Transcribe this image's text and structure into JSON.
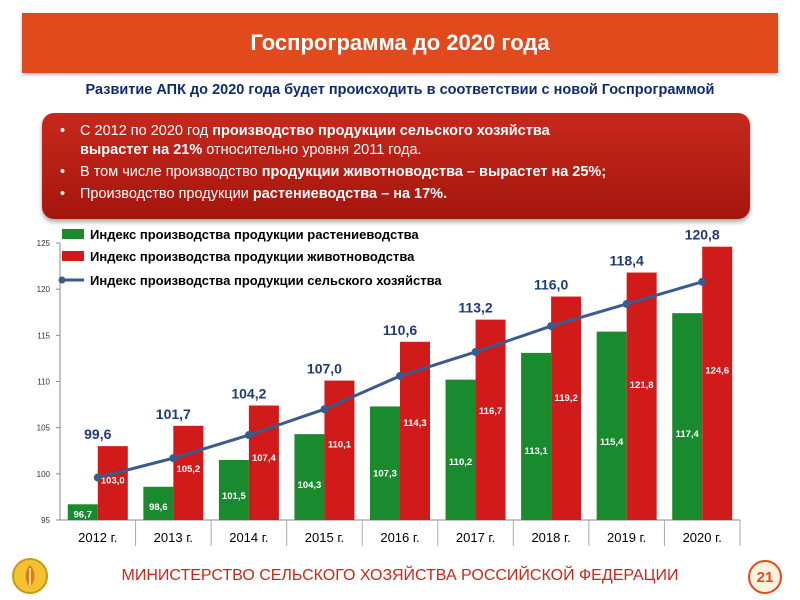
{
  "header": {
    "title": "Госпрограмма до 2020 года"
  },
  "subtitle": "Развитие АПК до 2020 года будет происходить в соответствии с новой Госпрограммой",
  "bullets": [
    {
      "pre": "С 2012 по 2020 год ",
      "bold": "производство продукции сельского хозяйства",
      "br": "вырастет на 21%",
      "post": " относительно уровня 2011 года."
    },
    {
      "pre": "В том числе производство ",
      "bold": "продукции животноводства – вырастет на 25%;",
      "post": ""
    },
    {
      "pre": "Производство продукции ",
      "bold": "растениеводства – на 17%.",
      "post": ""
    }
  ],
  "chart_data": {
    "type": "bar",
    "categories": [
      "2012 г.",
      "2013 г.",
      "2014 г.",
      "2015 г.",
      "2016 г.",
      "2017 г.",
      "2018 г.",
      "2019 г.",
      "2020 г."
    ],
    "ylim": [
      95,
      125
    ],
    "yticks": [
      95,
      100,
      105,
      110,
      115,
      120,
      125
    ],
    "grid": false,
    "legend_position": "top-left",
    "series": [
      {
        "name": "Индекс производства продукции растениеводства",
        "type": "bar",
        "color": "#1a8a2e",
        "values": [
          96.7,
          98.6,
          101.5,
          104.3,
          107.3,
          110.2,
          113.1,
          115.4,
          117.4
        ],
        "labels": [
          "96,7",
          "98,6",
          "101,5",
          "104,3",
          "107,3",
          "110,2",
          "113,1",
          "115,4",
          "117,4"
        ]
      },
      {
        "name": "Индекс производства продукции животноводства",
        "type": "bar",
        "color": "#d11a1a",
        "values": [
          103.0,
          105.2,
          107.4,
          110.1,
          114.3,
          116.7,
          119.2,
          121.8,
          124.6
        ],
        "labels": [
          "103,0",
          "105,2",
          "107,4",
          "110,1",
          "114,3",
          "116,7",
          "119,2",
          "121,8",
          "124,6"
        ]
      },
      {
        "name": "Индекс производства продукции сельского хозяйства",
        "type": "line",
        "color": "#3b5b8c",
        "values": [
          99.6,
          101.7,
          104.2,
          107.0,
          110.6,
          113.2,
          116.0,
          118.4,
          120.8
        ],
        "labels": [
          "99,6",
          "101,7",
          "104,2",
          "107,0",
          "110,6",
          "113,2",
          "116,0",
          "118,4",
          "120,8"
        ]
      }
    ]
  },
  "footer": {
    "text": "МИНИСТЕРСТВО СЕЛЬСКОГО ХОЗЯЙСТВА РОССИЙСКОЙ ФЕДЕРАЦИИ",
    "page": "21"
  }
}
